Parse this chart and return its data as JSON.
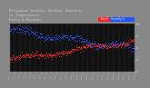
{
  "title_line1": "Milwaukee Weather Outdoor Humidity",
  "title_line2": "vs Temperature",
  "title_line3": "Every 5 Minutes",
  "title_fontsize": 2.8,
  "bg_color": "#888888",
  "plot_bg": "#111111",
  "border_color": "#555555",
  "blue_color": "#2255ff",
  "red_color": "#ff2222",
  "legend_blue_label": "Humidity %",
  "legend_red_label": "Temp F",
  "x_tick_fontsize": 1.6,
  "y_tick_fontsize": 2.0,
  "dot_size": 0.5,
  "num_points": 288,
  "seed": 7,
  "ylim_min": 0,
  "ylim_max": 100,
  "grid_color": "#444444",
  "tick_color": "#cccccc",
  "title_color": "#cccccc"
}
